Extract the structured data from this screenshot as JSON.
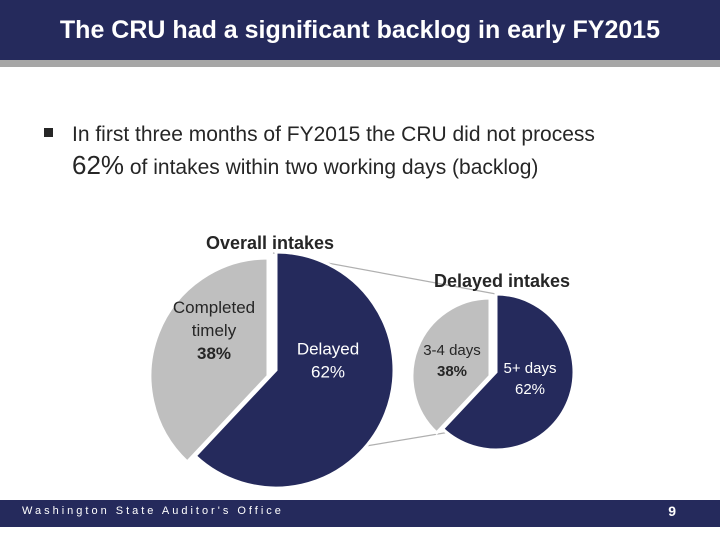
{
  "slide": {
    "title": "The CRU had a significant backlog in early FY2015",
    "bullet_text_before": "In first three months of FY2015 the CRU did not process",
    "bullet_highlight": "62%",
    "bullet_text_after": " of intakes within two working days (backlog)",
    "footer": "Washington State Auditor's Office",
    "page_number": "9"
  },
  "colors": {
    "navy": "#252a5c",
    "gray": "#bfbfbf",
    "connector": "#b0b0b0"
  },
  "chart_data": [
    {
      "type": "pie",
      "title": "Overall intakes",
      "slices": [
        {
          "label": "Completed timely",
          "label_lines": [
            "Completed",
            "timely"
          ],
          "value": 38,
          "display": "38%",
          "color": "#bfbfbf"
        },
        {
          "label": "Delayed",
          "label_lines": [
            "Delayed"
          ],
          "value": 62,
          "display": "62%",
          "color": "#252a5c"
        }
      ]
    },
    {
      "type": "pie",
      "title": "Delayed intakes",
      "slices": [
        {
          "label": "3-4 days",
          "label_lines": [
            "3-4 days"
          ],
          "value": 38,
          "display": "38%",
          "color": "#bfbfbf"
        },
        {
          "label": "5+ days",
          "label_lines": [
            "5+ days"
          ],
          "value": 62,
          "display": "62%",
          "color": "#252a5c"
        }
      ]
    }
  ]
}
